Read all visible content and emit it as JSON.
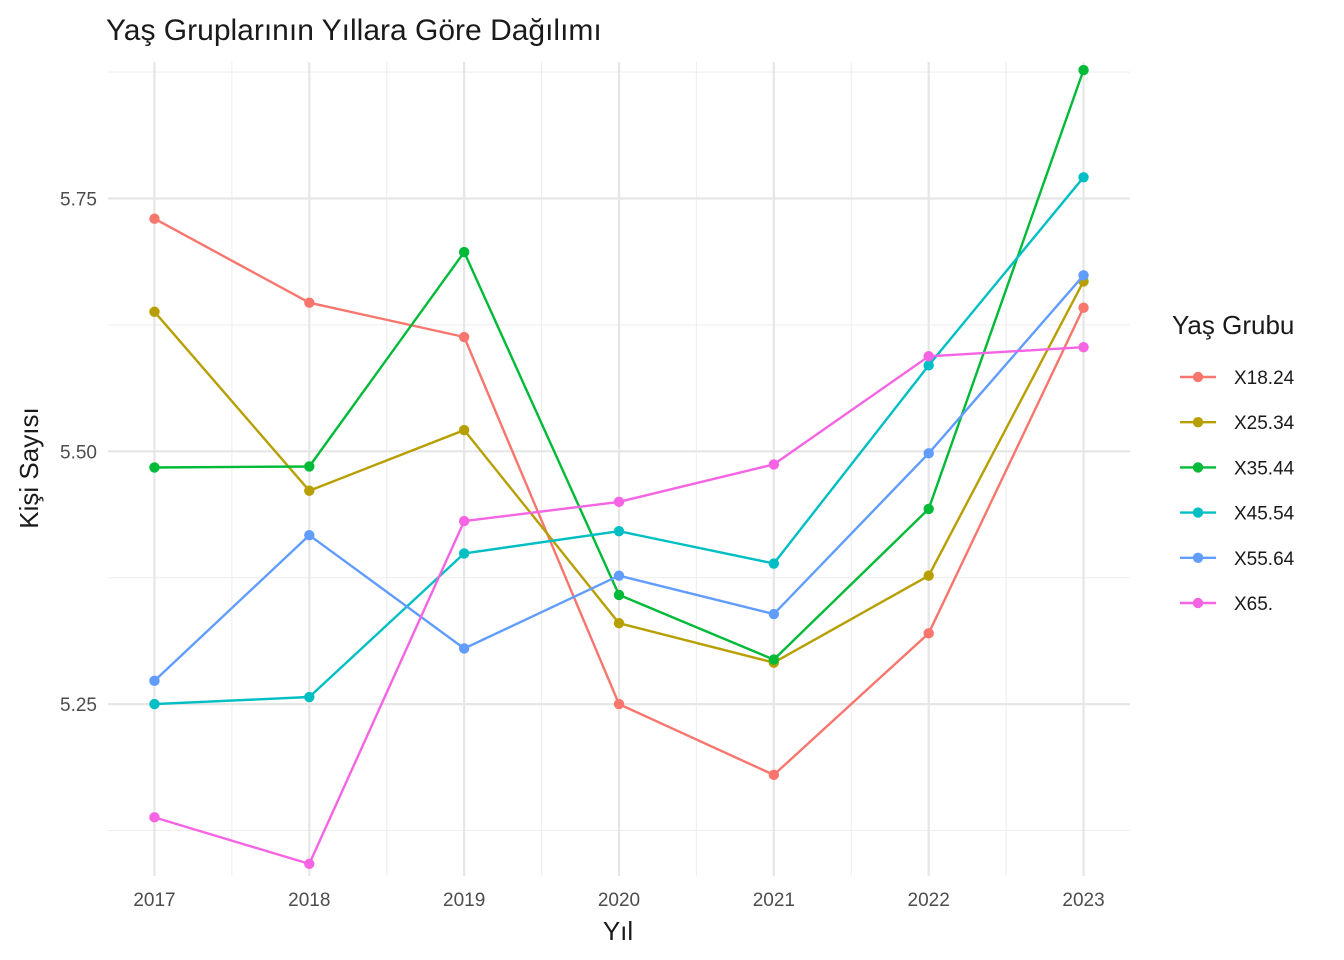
{
  "chart_data": {
    "type": "line",
    "title": "Yaş Gruplarının Yıllara Göre Dağılımı",
    "xlabel": "Yıl",
    "ylabel": "Kişi Sayısı",
    "x": [
      2017,
      2018,
      2019,
      2020,
      2021,
      2022,
      2023
    ],
    "xlim": [
      2016.7,
      2023.3
    ],
    "ylim": [
      5.08,
      5.885
    ],
    "yticks": [
      5.25,
      5.5,
      5.75
    ],
    "ytick_labels": [
      "5.25",
      "5.50",
      "5.75"
    ],
    "yminor": [
      5.125,
      5.375,
      5.625,
      5.875
    ],
    "grid": true,
    "legend": {
      "title": "Yaş Grubu",
      "position": "right"
    },
    "series": [
      {
        "name": "X18.24",
        "color": "#F8766D",
        "values": [
          5.73,
          5.647,
          5.613,
          5.25,
          5.18,
          5.32,
          5.642
        ]
      },
      {
        "name": "X25.34",
        "color": "#B79F00",
        "values": [
          5.638,
          5.461,
          5.521,
          5.33,
          5.291,
          5.377,
          5.668
        ]
      },
      {
        "name": "X35.44",
        "color": "#00BA38",
        "values": [
          5.484,
          5.485,
          5.697,
          5.358,
          5.294,
          5.443,
          5.877
        ]
      },
      {
        "name": "X45.54",
        "color": "#00BFC4",
        "values": [
          5.25,
          5.257,
          5.399,
          5.421,
          5.389,
          5.585,
          5.771
        ]
      },
      {
        "name": "X55.64",
        "color": "#619CFF",
        "values": [
          5.273,
          5.417,
          5.305,
          5.377,
          5.339,
          5.498,
          5.674
        ]
      },
      {
        "name": "X65.",
        "color": "#F564E3",
        "values": [
          5.138,
          5.092,
          5.431,
          5.45,
          5.487,
          5.594,
          5.603
        ]
      }
    ]
  }
}
